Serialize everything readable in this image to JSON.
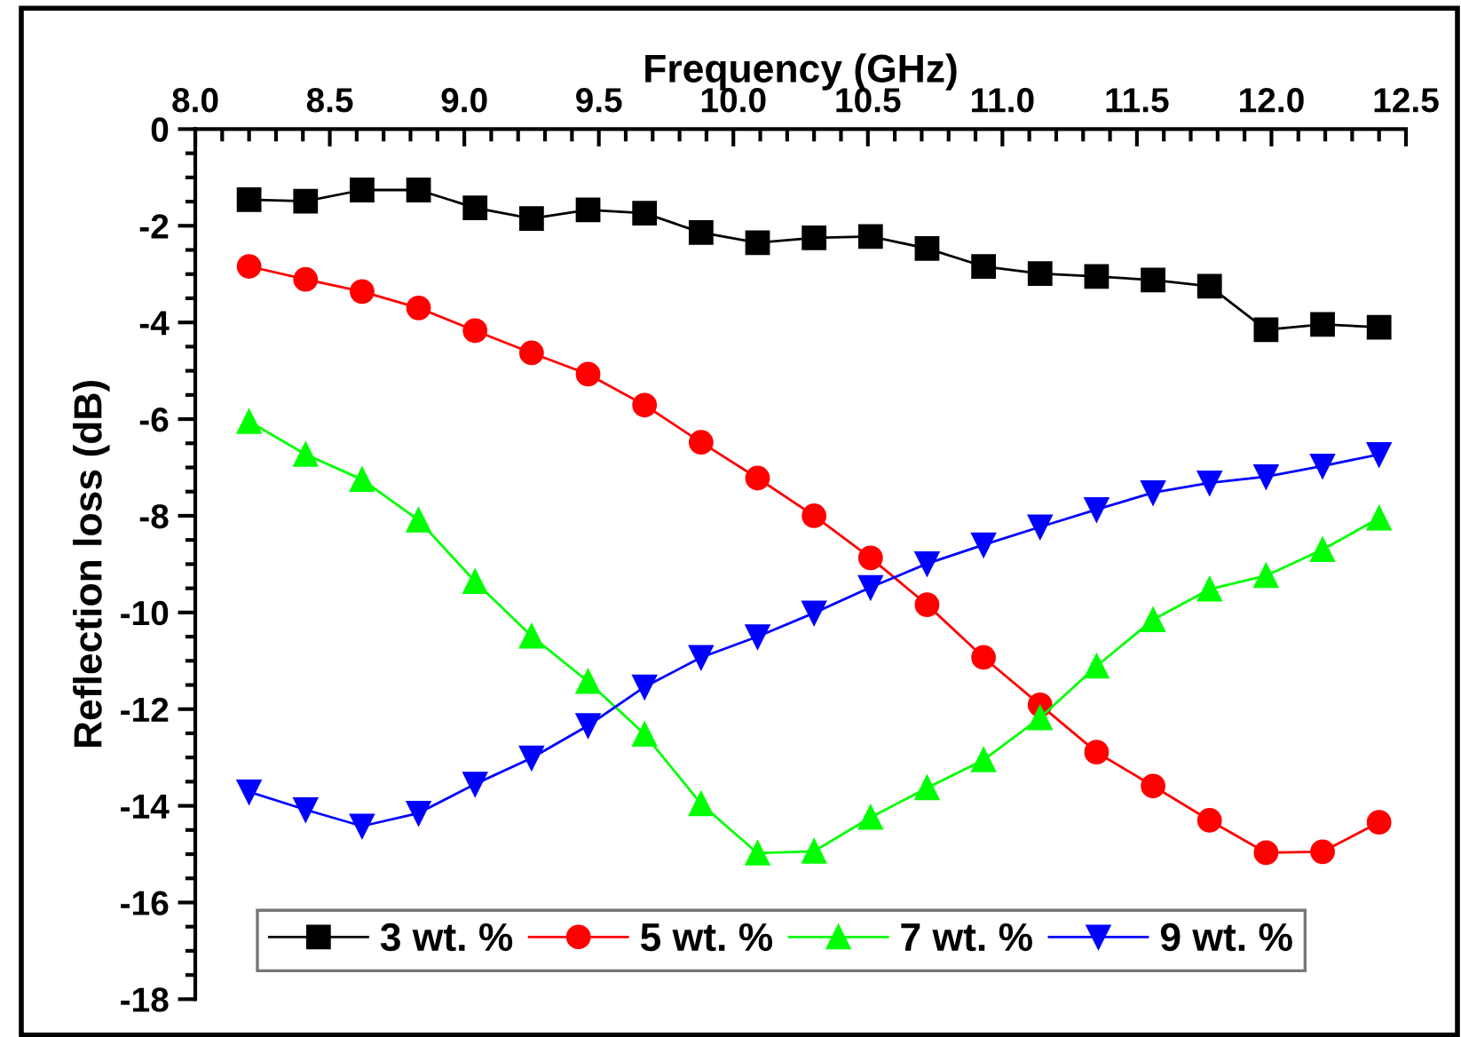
{
  "chart_data": {
    "type": "line",
    "xlabel": "Frequency (GHz)",
    "ylabel": "Reflection loss (dB)",
    "x": [
      8.2,
      8.41,
      8.62,
      8.83,
      9.04,
      9.25,
      9.46,
      9.67,
      9.88,
      10.09,
      10.3,
      10.51,
      10.72,
      10.93,
      11.14,
      11.35,
      11.56,
      11.77,
      11.98,
      12.19,
      12.4
    ],
    "xlim": [
      8.0,
      12.5
    ],
    "xticks": [
      {
        "value": 8,
        "label": "8.0"
      },
      8.5,
      {
        "value": 9,
        "label": "9.0"
      },
      9.5,
      {
        "value": 10,
        "label": "10.0"
      },
      10.5,
      {
        "value": 11,
        "label": "11.0"
      },
      11.5,
      {
        "value": 12,
        "label": "12.0"
      },
      12.5
    ],
    "ylim": [
      -18,
      0
    ],
    "yticks": [
      0,
      -2,
      -4,
      -6,
      -8,
      -10,
      -12,
      -14,
      -16,
      -18
    ],
    "grid": false,
    "legend": "bottom left",
    "series": [
      {
        "name": "3 wt. %",
        "color": "#000000",
        "marker": "square",
        "values": [
          -1.46,
          -1.49,
          -1.26,
          -1.26,
          -1.63,
          -1.85,
          -1.67,
          -1.74,
          -2.14,
          -2.35,
          -2.25,
          -2.22,
          -2.47,
          -2.84,
          -2.99,
          -3.05,
          -3.12,
          -3.25,
          -4.15,
          -4.04,
          -4.1
        ]
      },
      {
        "name": "5 wt. %",
        "color": "#ff0000",
        "marker": "circle",
        "values": [
          -2.84,
          -3.11,
          -3.36,
          -3.7,
          -4.17,
          -4.63,
          -5.07,
          -5.71,
          -6.48,
          -7.22,
          -8.0,
          -8.87,
          -9.84,
          -10.93,
          -11.91,
          -12.89,
          -13.59,
          -14.3,
          -14.97,
          -14.95,
          -14.34
        ]
      },
      {
        "name": "7 wt. %",
        "color": "#00ff00",
        "marker": "triangle",
        "values": [
          -6.05,
          -6.73,
          -7.25,
          -8.09,
          -9.36,
          -10.49,
          -11.43,
          -12.52,
          -13.96,
          -14.98,
          -14.94,
          -14.24,
          -13.63,
          -13.05,
          -12.18,
          -11.11,
          -10.15,
          -9.52,
          -9.24,
          -8.7,
          -8.05
        ]
      },
      {
        "name": "9 wt. %",
        "color": "#0000ff",
        "marker": "triangle_down",
        "values": [
          -13.71,
          -14.08,
          -14.42,
          -14.15,
          -13.55,
          -13.01,
          -12.34,
          -11.54,
          -10.93,
          -10.5,
          -10.01,
          -9.48,
          -8.99,
          -8.6,
          -8.23,
          -7.87,
          -7.52,
          -7.32,
          -7.19,
          -6.97,
          -6.73
        ]
      }
    ]
  }
}
